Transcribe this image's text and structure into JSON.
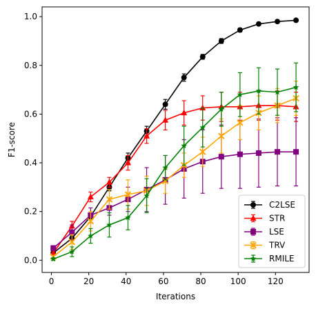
{
  "chart_data": {
    "type": "line",
    "title": "",
    "xlabel": "Iterations",
    "ylabel": "F1-score",
    "xlim": [
      -5,
      138
    ],
    "ylim": [
      -0.05,
      1.04
    ],
    "xticks": [
      "0",
      "20",
      "40",
      "60",
      "80",
      "100",
      "120"
    ],
    "yticks": [
      "0.0",
      "0.2",
      "0.4",
      "0.6",
      "0.8",
      "1.0"
    ],
    "grid": false,
    "legend_position": "lower-right",
    "x": [
      1,
      11,
      21,
      31,
      41,
      51,
      61,
      71,
      81,
      91,
      101,
      111,
      121,
      131
    ],
    "series": [
      {
        "name": "C2LSE",
        "color": "#000000",
        "marker": "circle",
        "values": [
          0.03,
          0.09,
          0.18,
          0.3,
          0.42,
          0.53,
          0.64,
          0.75,
          0.835,
          0.9,
          0.945,
          0.97,
          0.98,
          0.985
        ],
        "errors": [
          0.01,
          0.01,
          0.01,
          0.015,
          0.02,
          0.02,
          0.02,
          0.015,
          0.01,
          0.01,
          0.008,
          0.005,
          0.005,
          0.004
        ]
      },
      {
        "name": "STR",
        "color": "#ff0000",
        "marker": "triangle",
        "values": [
          0.03,
          0.14,
          0.26,
          0.32,
          0.4,
          0.51,
          0.575,
          0.605,
          0.625,
          0.63,
          0.63,
          0.635,
          0.635,
          0.63
        ],
        "errors": [
          0.01,
          0.02,
          0.02,
          0.02,
          0.03,
          0.03,
          0.04,
          0.05,
          0.05,
          0.06,
          0.06,
          0.06,
          0.06,
          0.06
        ]
      },
      {
        "name": "LSE",
        "color": "#800080",
        "marker": "square",
        "values": [
          0.05,
          0.115,
          0.185,
          0.215,
          0.25,
          0.29,
          0.33,
          0.375,
          0.405,
          0.425,
          0.435,
          0.44,
          0.445,
          0.445
        ],
        "errors": [
          0.01,
          0.03,
          0.03,
          0.03,
          0.05,
          0.09,
          0.1,
          0.12,
          0.13,
          0.13,
          0.14,
          0.14,
          0.14,
          0.14
        ]
      },
      {
        "name": "TRV",
        "color": "#ffa500",
        "marker": "x",
        "values": [
          0.015,
          0.075,
          0.16,
          0.25,
          0.27,
          0.285,
          0.325,
          0.39,
          0.445,
          0.51,
          0.565,
          0.605,
          0.635,
          0.665
        ],
        "errors": [
          0.005,
          0.03,
          0.04,
          0.04,
          0.06,
          0.06,
          0.05,
          0.05,
          0.06,
          0.07,
          0.07,
          0.07,
          0.07,
          0.07
        ]
      },
      {
        "name": "RMILE",
        "color": "#008000",
        "marker": "star",
        "values": [
          0.005,
          0.035,
          0.1,
          0.145,
          0.175,
          0.265,
          0.38,
          0.47,
          0.545,
          0.62,
          0.68,
          0.695,
          0.69,
          0.71
        ],
        "errors": [
          0.005,
          0.02,
          0.03,
          0.05,
          0.05,
          0.07,
          0.05,
          0.08,
          0.08,
          0.07,
          0.09,
          0.095,
          0.095,
          0.1
        ]
      }
    ]
  }
}
